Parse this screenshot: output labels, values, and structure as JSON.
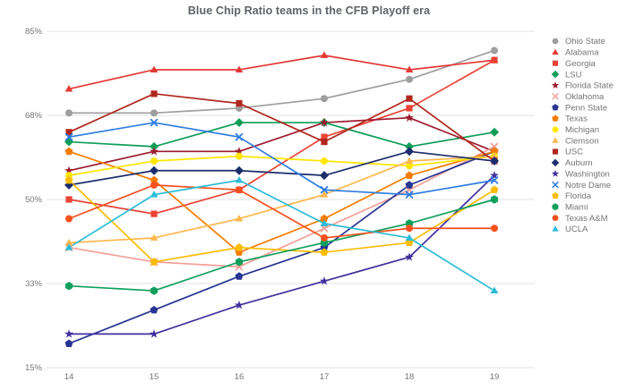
{
  "chart_data": {
    "type": "line",
    "title": "Blue Chip Ratio teams in the CFB Playoff era",
    "x_labels": [
      "14",
      "15",
      "16",
      "17",
      "18",
      "19"
    ],
    "y_tick_labels": [
      "85%",
      "68%",
      "50%",
      "33%",
      "15%"
    ],
    "y_tick_values": [
      85,
      67.5,
      50,
      32.5,
      15
    ],
    "ylim": [
      15,
      85
    ],
    "xlabel": "",
    "ylabel": "",
    "grid": "horizontal",
    "legend_position": "right",
    "series": [
      {
        "name": "Ohio State",
        "marker": "circle",
        "color": "#9e9e9e",
        "values": [
          68,
          68,
          69,
          71,
          75,
          81
        ]
      },
      {
        "name": "Alabama",
        "marker": "triangle",
        "color": "#e53935",
        "values": [
          73,
          77,
          77,
          80,
          77,
          79
        ]
      },
      {
        "name": "Georgia",
        "marker": "square",
        "color": "#ea4335",
        "values": [
          50,
          47,
          52,
          63,
          69,
          79
        ]
      },
      {
        "name": "LSU",
        "marker": "diamond",
        "color": "#0f9d58",
        "values": [
          62,
          61,
          66,
          66,
          61,
          64
        ]
      },
      {
        "name": "Florida State",
        "marker": "star",
        "color": "#9c1b30",
        "values": [
          56,
          60,
          60,
          66,
          67,
          60
        ]
      },
      {
        "name": "Oklahoma",
        "marker": "x",
        "color": "#f29f97",
        "values": [
          40,
          37,
          36,
          44,
          52,
          61
        ]
      },
      {
        "name": "Penn State",
        "marker": "pentagon",
        "color": "#283593",
        "values": [
          20,
          27,
          34,
          40,
          53,
          60
        ]
      },
      {
        "name": "Texas",
        "marker": "pentagon",
        "color": "#f57c00",
        "values": [
          60,
          54,
          39,
          46,
          55,
          60
        ]
      },
      {
        "name": "Michigan",
        "marker": "circle",
        "color": "#ffe600",
        "values": [
          55,
          58,
          59,
          58,
          57,
          59
        ]
      },
      {
        "name": "Clemson",
        "marker": "triangle",
        "color": "#ffb74d",
        "values": [
          41,
          42,
          46,
          51,
          58,
          59
        ]
      },
      {
        "name": "USC",
        "marker": "square",
        "color": "#b0271d",
        "values": [
          64,
          72,
          70,
          62,
          71,
          58
        ]
      },
      {
        "name": "Auburn",
        "marker": "diamond",
        "color": "#1b2d6b",
        "values": [
          53,
          56,
          56,
          55,
          60,
          58
        ]
      },
      {
        "name": "Washington",
        "marker": "star",
        "color": "#432f9e",
        "values": [
          22,
          22,
          28,
          33,
          38,
          55
        ]
      },
      {
        "name": "Notre Dame",
        "marker": "x",
        "color": "#2f7de1",
        "values": [
          63,
          66,
          63,
          52,
          51,
          54
        ]
      },
      {
        "name": "Florida",
        "marker": "pentagon",
        "color": "#fbbc04",
        "values": [
          54,
          37,
          40,
          39,
          41,
          52
        ]
      },
      {
        "name": "Miami",
        "marker": "hexagon",
        "color": "#10a05d",
        "values": [
          32,
          31,
          37,
          41,
          45,
          50
        ]
      },
      {
        "name": "Texas A&M",
        "marker": "circle",
        "color": "#f4511e",
        "values": [
          46,
          53,
          52,
          42,
          44,
          44
        ]
      },
      {
        "name": "UCLA",
        "marker": "triangle",
        "color": "#2cbcd6",
        "values": [
          40,
          51,
          54,
          45,
          42,
          31
        ]
      }
    ]
  }
}
